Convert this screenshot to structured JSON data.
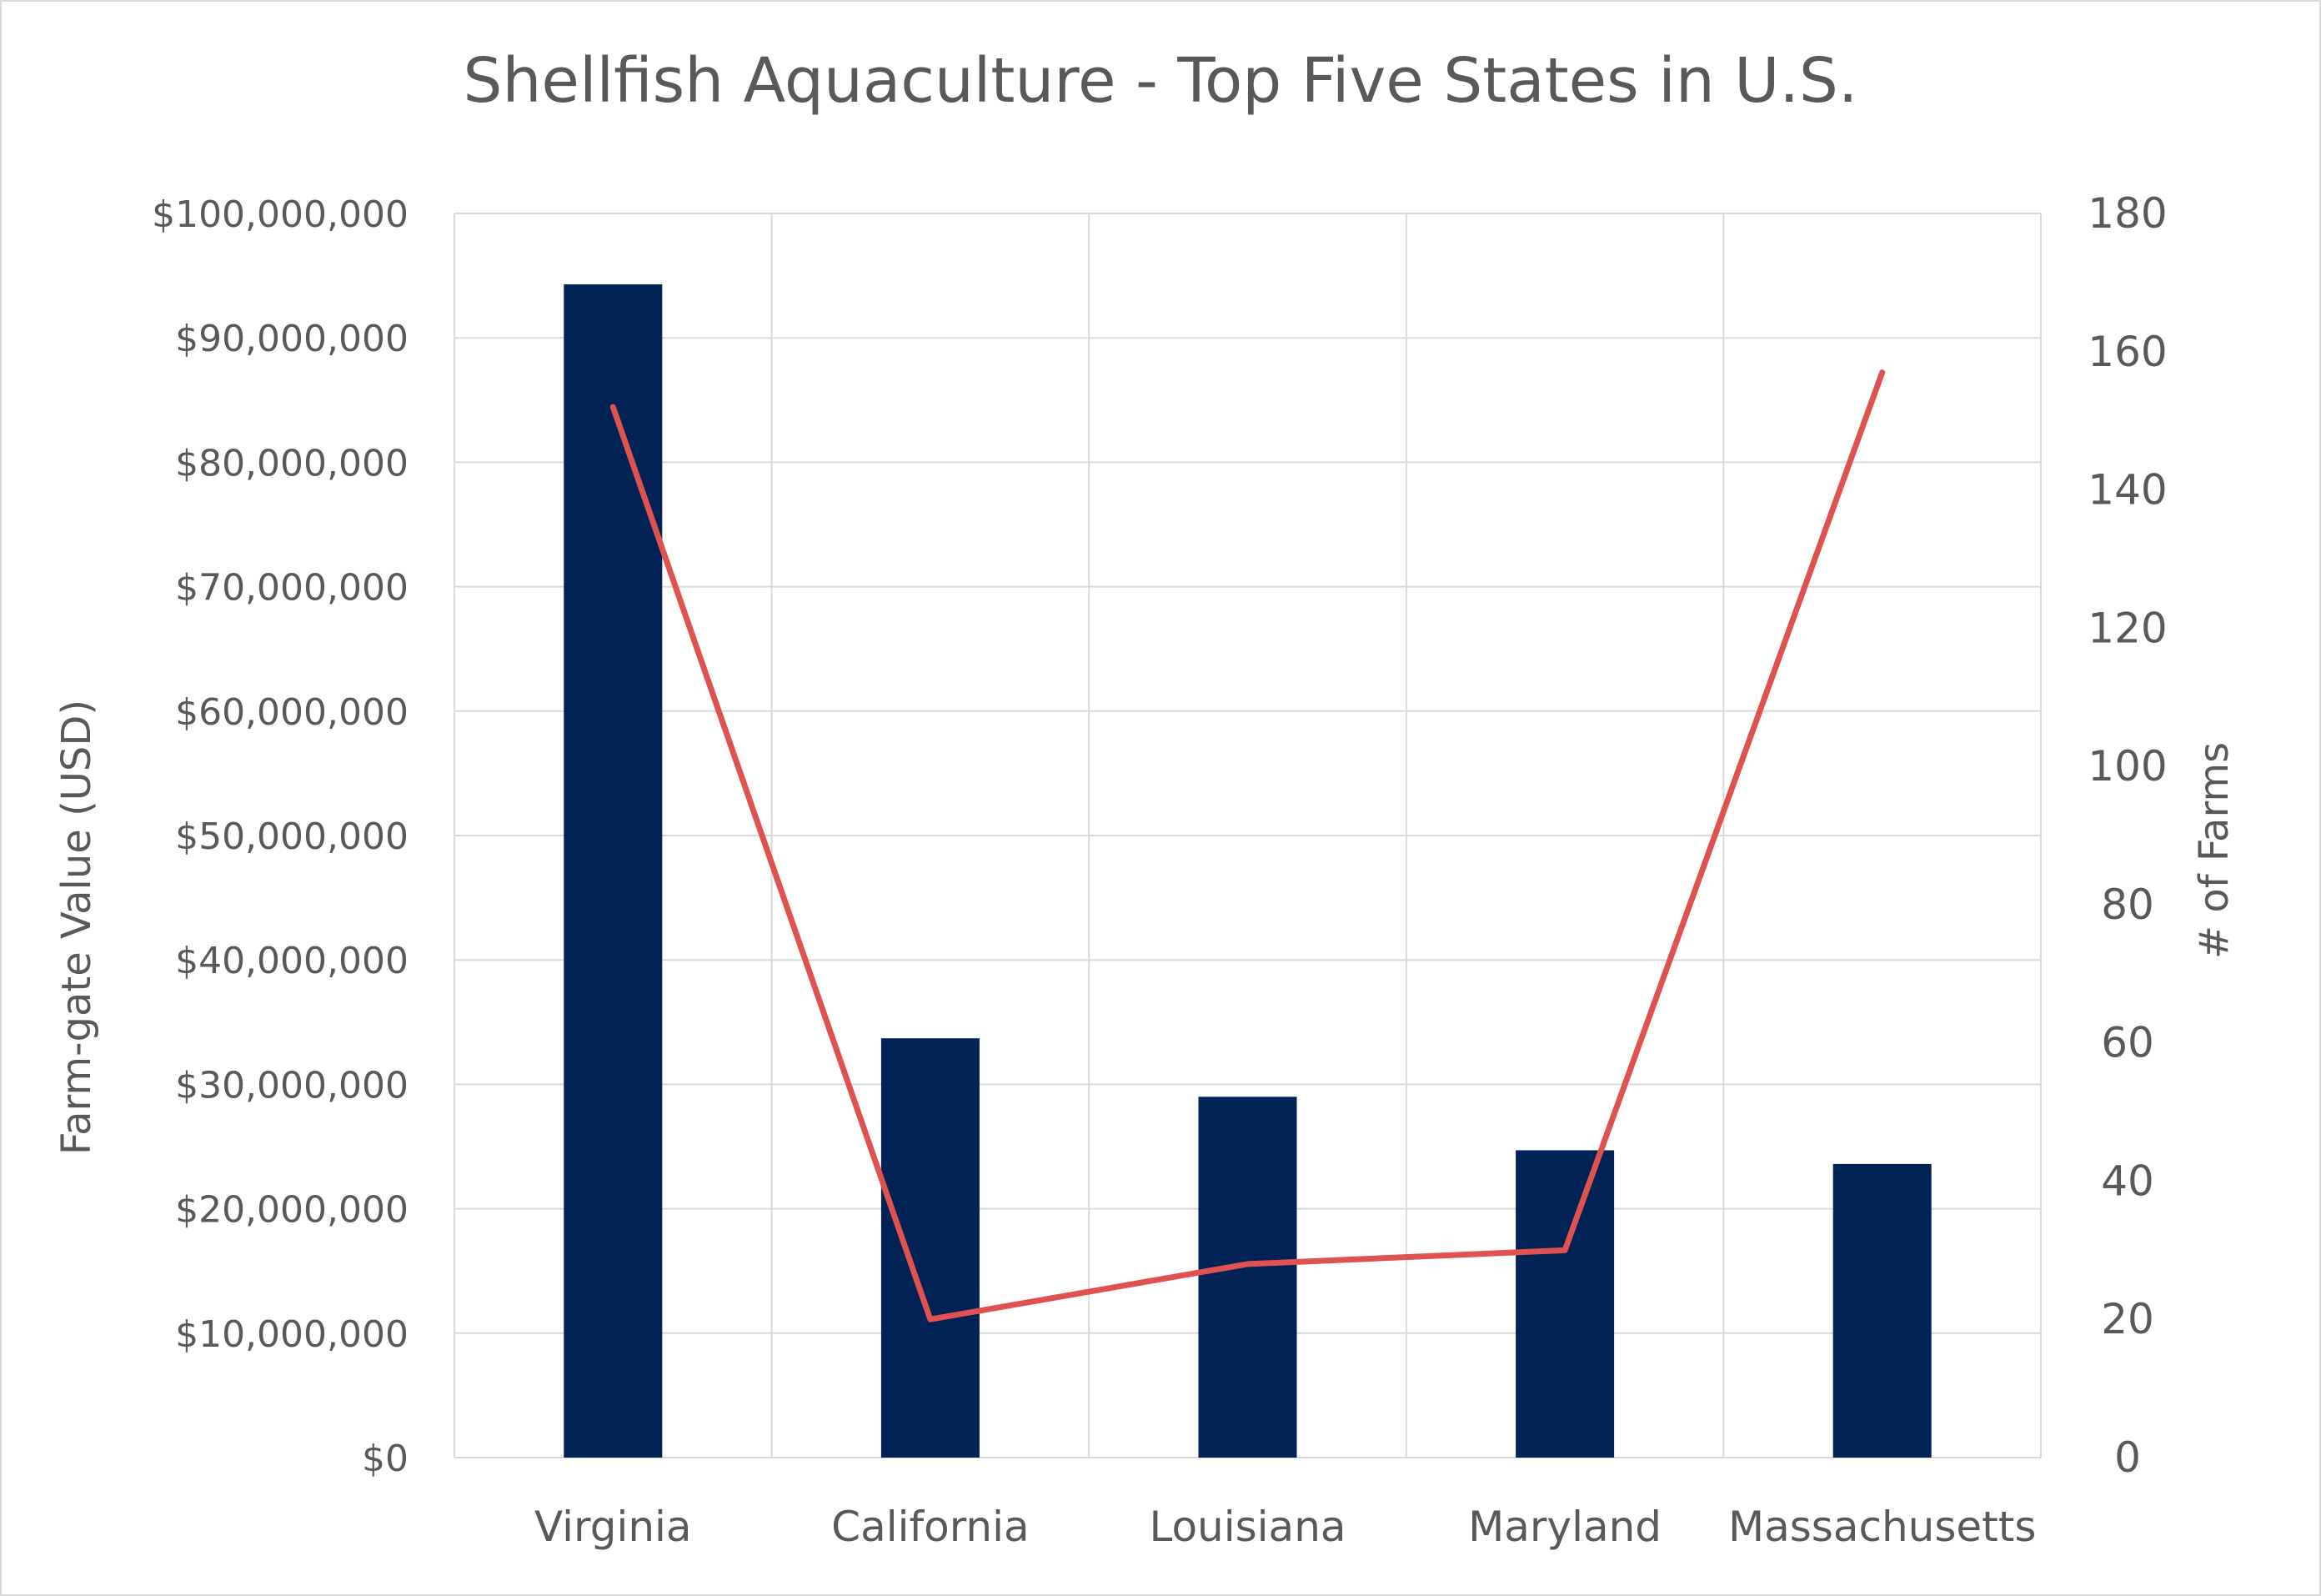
{
  "chart_data": {
    "type": "bar",
    "title": "Shellfish Aquaculture - Top Five States in U.S.",
    "categories": [
      "Virginia",
      "California",
      "Louisiana",
      "Maryland",
      "Massachusetts"
    ],
    "series": [
      {
        "type": "bar",
        "axis": "left",
        "values": [
          94300000,
          33700000,
          29000000,
          24700000,
          23600000
        ],
        "color": "#002255"
      },
      {
        "type": "line",
        "axis": "right",
        "values": [
          152,
          20,
          28,
          30,
          157
        ],
        "color": "#e0524f"
      }
    ],
    "ylabel": "Farm-gate Value (USD)",
    "ylim": [
      0,
      100000000
    ],
    "yticks": [
      "$0",
      "$10,000,000",
      "$20,000,000",
      "$30,000,000",
      "$40,000,000",
      "$50,000,000",
      "$60,000,000",
      "$70,000,000",
      "$80,000,000",
      "$90,000,000",
      "$100,000,000"
    ],
    "y2label": "# of Farms",
    "y2lim": [
      0,
      180
    ],
    "y2ticks": [
      "0",
      "20",
      "40",
      "60",
      "80",
      "100",
      "120",
      "140",
      "160",
      "180"
    ],
    "grid": true
  }
}
